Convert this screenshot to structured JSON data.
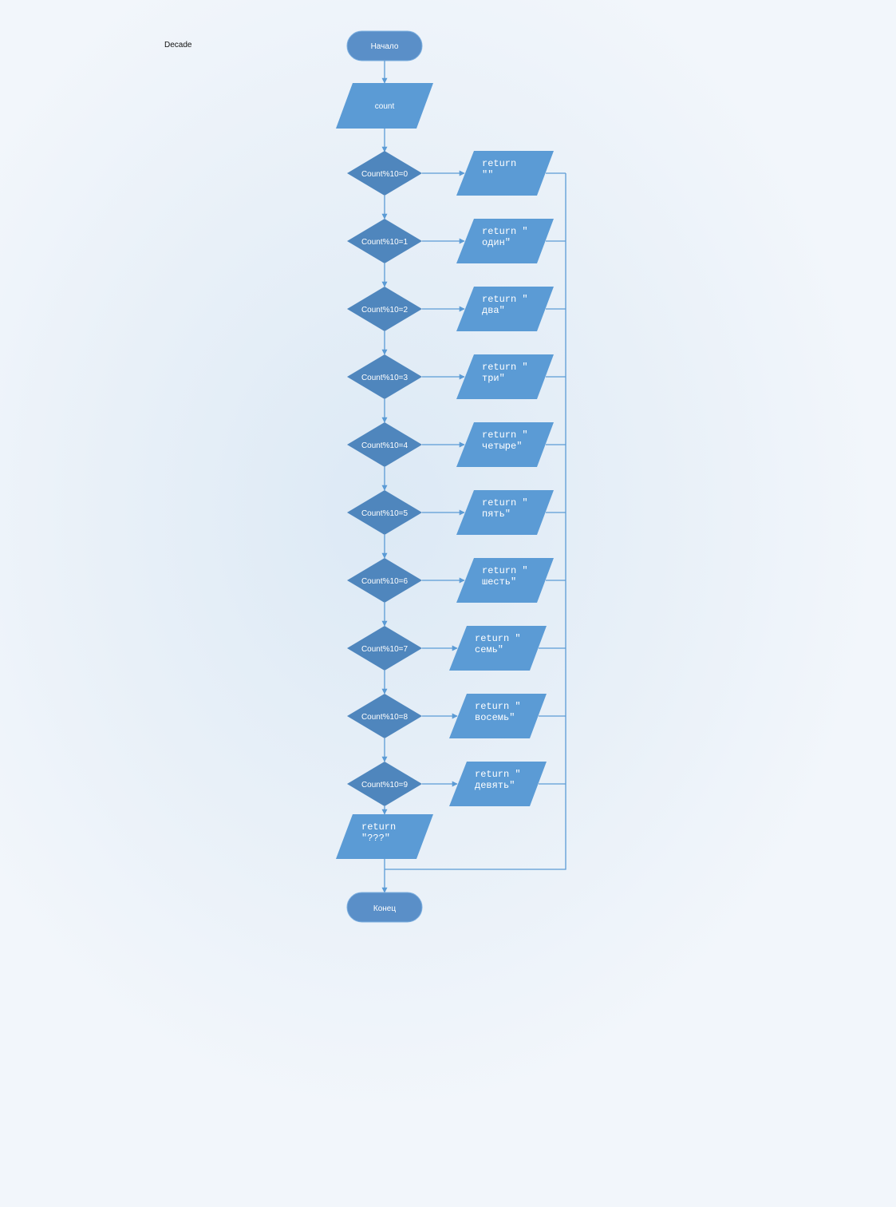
{
  "title": "Decade",
  "start": "Начало",
  "end": "Конец",
  "input": "count",
  "decisions": [
    {
      "label": "Count%10=0",
      "out": [
        "return",
        "\"\""
      ]
    },
    {
      "label": "Count%10=1",
      "out": [
        "return \"",
        "один\""
      ]
    },
    {
      "label": "Count%10=2",
      "out": [
        "return \"",
        "два\""
      ]
    },
    {
      "label": "Count%10=3",
      "out": [
        "return \"",
        "три\""
      ]
    },
    {
      "label": "Count%10=4",
      "out": [
        "return \"",
        "четыре\""
      ]
    },
    {
      "label": "Count%10=5",
      "out": [
        "return \"",
        "пять\""
      ]
    },
    {
      "label": "Count%10=6",
      "out": [
        "return \"",
        "шесть\""
      ]
    },
    {
      "label": "Count%10=7",
      "out": [
        "return \"",
        "семь\""
      ]
    },
    {
      "label": "Count%10=8",
      "out": [
        "return \"",
        "восемь\""
      ]
    },
    {
      "label": "Count%10=9",
      "out": [
        "return \"",
        "девять\""
      ]
    }
  ],
  "default_out": [
    "return",
    "\"???\""
  ],
  "colors": {
    "line": "#5b9bd5",
    "terminal": "#5a8fc8",
    "io": "#5b9bd5",
    "decision": "#4f86bd"
  }
}
